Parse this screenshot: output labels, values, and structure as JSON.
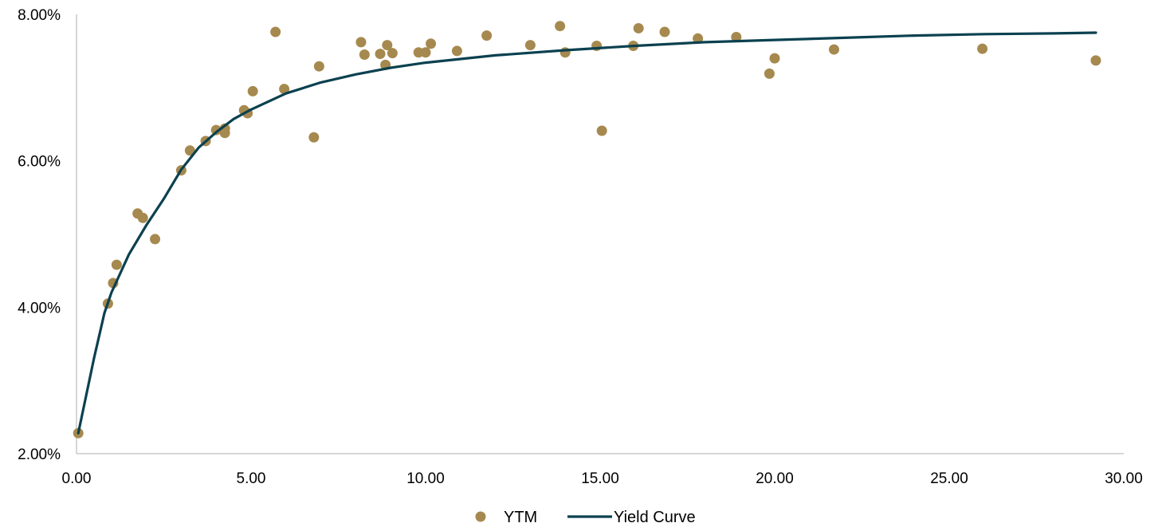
{
  "chart_data": {
    "type": "scatter",
    "title": "",
    "xlabel": "",
    "ylabel": "",
    "xlim": [
      0,
      30
    ],
    "ylim": [
      0.02,
      0.08
    ],
    "x_ticks": [
      0,
      5,
      10,
      15,
      20,
      25,
      30
    ],
    "x_tick_labels": [
      "0.00",
      "5.00",
      "10.00",
      "15.00",
      "20.00",
      "25.00",
      "30.00"
    ],
    "y_ticks": [
      0.02,
      0.04,
      0.06,
      0.08
    ],
    "y_tick_labels": [
      "2.00%",
      "4.00%",
      "6.00%",
      "8.00%"
    ],
    "grid": false,
    "legend_position": "bottom",
    "series": [
      {
        "name": "YTM",
        "kind": "scatter",
        "color": "#A6894E",
        "points": [
          [
            0.05,
            0.0228
          ],
          [
            0.9,
            0.0405
          ],
          [
            1.05,
            0.0433
          ],
          [
            1.15,
            0.0458
          ],
          [
            1.75,
            0.0528
          ],
          [
            1.9,
            0.0522
          ],
          [
            2.25,
            0.0493
          ],
          [
            3.0,
            0.0587
          ],
          [
            3.25,
            0.0614
          ],
          [
            3.7,
            0.0627
          ],
          [
            4.0,
            0.0642
          ],
          [
            4.25,
            0.0638
          ],
          [
            4.25,
            0.0644
          ],
          [
            4.8,
            0.0669
          ],
          [
            4.9,
            0.0665
          ],
          [
            5.05,
            0.0695
          ],
          [
            5.7,
            0.0776
          ],
          [
            5.95,
            0.0698
          ],
          [
            6.8,
            0.0632
          ],
          [
            6.95,
            0.0729
          ],
          [
            8.15,
            0.0762
          ],
          [
            8.25,
            0.0745
          ],
          [
            8.7,
            0.0746
          ],
          [
            8.85,
            0.0731
          ],
          [
            8.9,
            0.0758
          ],
          [
            9.05,
            0.0747
          ],
          [
            9.8,
            0.0748
          ],
          [
            10.0,
            0.0748
          ],
          [
            10.15,
            0.076
          ],
          [
            10.9,
            0.075
          ],
          [
            11.75,
            0.0771
          ],
          [
            13.0,
            0.0758
          ],
          [
            13.85,
            0.0784
          ],
          [
            14.0,
            0.0748
          ],
          [
            14.9,
            0.0757
          ],
          [
            15.05,
            0.0641
          ],
          [
            15.95,
            0.0757
          ],
          [
            16.1,
            0.0781
          ],
          [
            16.85,
            0.0776
          ],
          [
            17.8,
            0.0767
          ],
          [
            18.9,
            0.0769
          ],
          [
            19.85,
            0.0719
          ],
          [
            20.0,
            0.074
          ],
          [
            21.7,
            0.0752
          ],
          [
            25.95,
            0.0753
          ],
          [
            29.2,
            0.0737
          ]
        ]
      },
      {
        "name": "Yield Curve",
        "kind": "line",
        "color": "#0B4150",
        "points": [
          [
            0.05,
            0.0228
          ],
          [
            0.5,
            0.033
          ],
          [
            0.8,
            0.0392
          ],
          [
            1.0,
            0.042
          ],
          [
            1.5,
            0.0472
          ],
          [
            2.0,
            0.0512
          ],
          [
            2.5,
            0.0548
          ],
          [
            3.0,
            0.0588
          ],
          [
            3.5,
            0.0618
          ],
          [
            4.0,
            0.0639
          ],
          [
            4.5,
            0.0657
          ],
          [
            5.0,
            0.067
          ],
          [
            6.0,
            0.0692
          ],
          [
            7.0,
            0.0707
          ],
          [
            8.0,
            0.0718
          ],
          [
            9.0,
            0.0727
          ],
          [
            10.0,
            0.0734
          ],
          [
            12.0,
            0.0744
          ],
          [
            14.0,
            0.0751
          ],
          [
            16.0,
            0.0757
          ],
          [
            18.0,
            0.0762
          ],
          [
            20.0,
            0.0765
          ],
          [
            22.0,
            0.0768
          ],
          [
            24.0,
            0.0771
          ],
          [
            26.0,
            0.0773
          ],
          [
            28.0,
            0.0774
          ],
          [
            29.2,
            0.0775
          ]
        ]
      }
    ]
  }
}
